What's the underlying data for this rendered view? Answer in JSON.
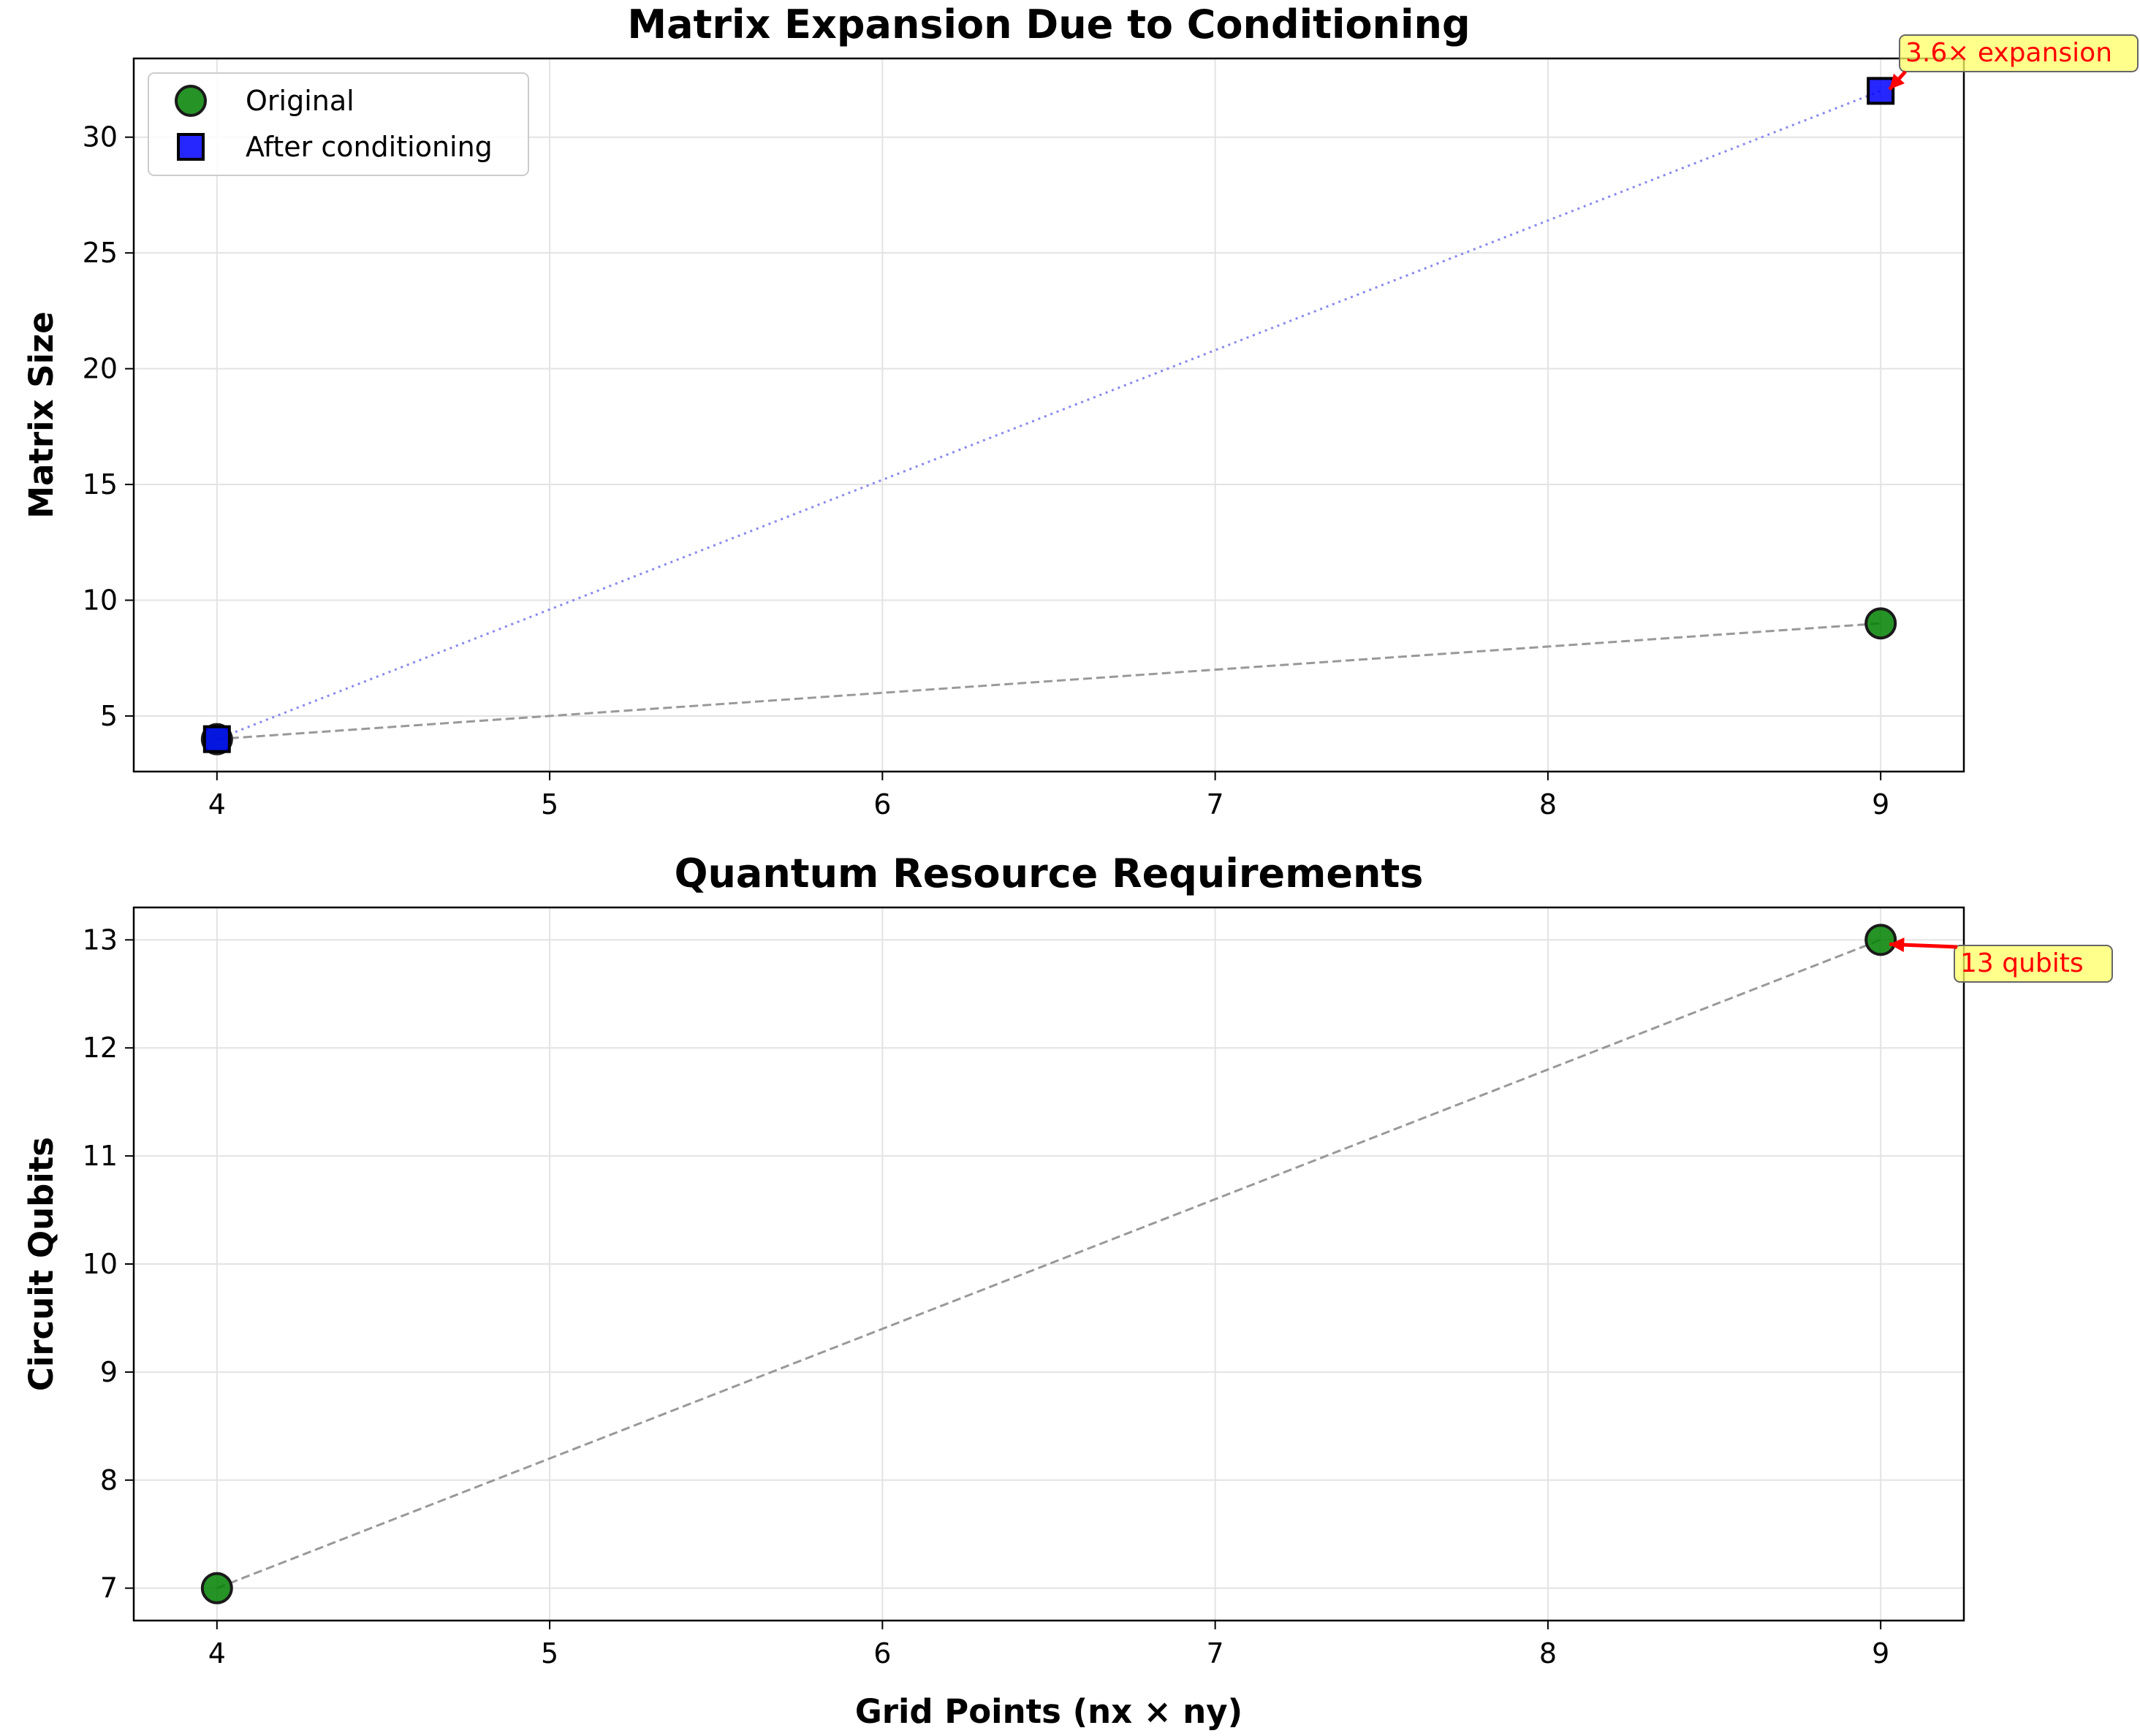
{
  "chart_data": [
    {
      "type": "scatter",
      "title": "Matrix Expansion Due to Conditioning",
      "xlabel": "",
      "ylabel": "Matrix Size",
      "xlim": [
        3.75,
        9.25
      ],
      "ylim": [
        2.6,
        33.4
      ],
      "xticks": [
        "4",
        "5",
        "6",
        "7",
        "8",
        "9"
      ],
      "yticks": [
        "5",
        "10",
        "15",
        "20",
        "25",
        "30"
      ],
      "grid": true,
      "legend_position": "top-left",
      "series": [
        {
          "name": "Original",
          "marker": "circle",
          "color": "#008000",
          "line_style": "dashed",
          "line_color": "#999999",
          "x": [
            4,
            9
          ],
          "y": [
            4,
            9
          ]
        },
        {
          "name": "After conditioning",
          "marker": "square",
          "color": "#0000ff",
          "line_style": "dotted",
          "line_color": "#8888ee",
          "x": [
            4,
            9
          ],
          "y": [
            4,
            32
          ]
        }
      ],
      "annotations": [
        {
          "text": "3.6× expansion",
          "x": 9,
          "y": 32
        }
      ]
    },
    {
      "type": "scatter",
      "title": "Quantum Resource Requirements",
      "xlabel": "Grid Points (nx × ny)",
      "ylabel": "Circuit Qubits",
      "xlim": [
        3.75,
        9.25
      ],
      "ylim": [
        6.7,
        13.3
      ],
      "xticks": [
        "4",
        "5",
        "6",
        "7",
        "8",
        "9"
      ],
      "yticks": [
        "7",
        "8",
        "9",
        "10",
        "11",
        "12",
        "13"
      ],
      "grid": true,
      "series": [
        {
          "marker": "circle",
          "color": "#008000",
          "line_style": "dashed",
          "line_color": "#999999",
          "x": [
            4,
            9
          ],
          "y": [
            7,
            13
          ]
        }
      ],
      "annotations": [
        {
          "text": "13 qubits",
          "x": 9,
          "y": 13
        }
      ]
    }
  ],
  "colors": {
    "original": "#008000",
    "conditioned": "#0000ff",
    "annotation_text": "#ff0000",
    "annotation_box": "#ffff66",
    "arrow": "#ff0000"
  }
}
